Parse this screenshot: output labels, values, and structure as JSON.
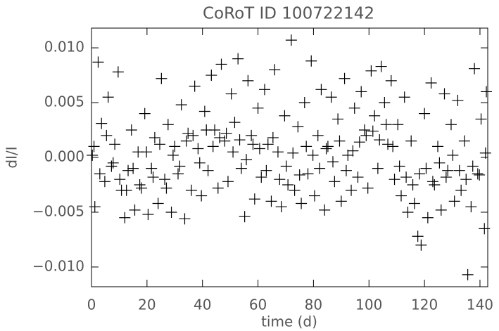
{
  "chart_data": {
    "type": "scatter",
    "title": "CoRoT ID 100722142",
    "x_label": "time (d)",
    "y_label": "dI/I",
    "color": "#000000",
    "marker": "plus",
    "xlim": [
      0,
      142.8
    ],
    "ylim": [
      -0.0118,
      0.0118
    ],
    "xticks": [
      0,
      20,
      40,
      60,
      80,
      100,
      120,
      140
    ],
    "yticks": [
      {
        "value": -0.01,
        "label": "−0.010"
      },
      {
        "value": -0.005,
        "label": "−0.005"
      },
      {
        "value": 0,
        "label": "0.000"
      },
      {
        "value": 0.005,
        "label": "0.005"
      },
      {
        "value": 0.01,
        "label": "0.010"
      }
    ],
    "x": [
      0.3,
      1.2,
      2.4,
      3.6,
      4.8,
      6.0,
      7.2,
      8.4,
      9.6,
      10.8,
      12.0,
      13.2,
      14.4,
      15.6,
      16.8,
      18.0,
      19.2,
      20.4,
      21.6,
      22.8,
      24.0,
      25.2,
      26.4,
      27.6,
      28.8,
      30.0,
      31.2,
      32.4,
      33.6,
      34.8,
      36.0,
      37.2,
      38.4,
      39.6,
      40.8,
      42.0,
      43.2,
      44.4,
      45.6,
      46.8,
      48.0,
      49.2,
      50.4,
      51.6,
      52.8,
      54.0,
      55.2,
      56.4,
      57.6,
      58.8,
      60.0,
      61.2,
      62.4,
      63.6,
      64.8,
      66.0,
      67.2,
      68.4,
      69.6,
      70.8,
      72.0,
      73.2,
      74.4,
      75.6,
      76.8,
      78.0,
      79.2,
      80.4,
      81.6,
      82.8,
      84.0,
      85.2,
      86.4,
      87.6,
      88.8,
      90.0,
      91.2,
      92.4,
      93.6,
      94.8,
      96.0,
      97.2,
      98.4,
      99.6,
      100.8,
      102.0,
      103.2,
      104.4,
      105.6,
      106.8,
      108.0,
      109.2,
      110.4,
      111.6,
      112.8,
      114.0,
      115.2,
      116.4,
      117.6,
      118.8,
      120.0,
      121.2,
      122.4,
      123.6,
      124.8,
      126.0,
      127.2,
      128.4,
      129.6,
      130.8,
      132.0,
      133.2,
      134.4,
      135.6,
      136.8,
      138.0,
      139.2,
      140.4,
      141.6,
      142.3,
      0.9,
      3.0,
      5.4,
      7.8,
      10.2,
      12.6,
      15.0,
      17.4,
      19.8,
      22.2,
      24.6,
      27.0,
      29.4,
      31.8,
      34.2,
      36.6,
      39.0,
      41.4,
      43.8,
      46.2,
      48.6,
      51.0,
      53.4,
      55.8,
      58.2,
      60.6,
      63.0,
      65.4,
      67.8,
      70.2,
      72.6,
      75.0,
      77.4,
      79.8,
      82.2,
      84.6,
      87.0,
      89.4,
      91.8,
      94.2,
      96.6,
      99.0,
      101.4,
      103.8,
      106.2,
      108.6,
      111.0,
      113.4,
      115.8,
      118.2,
      120.6,
      123.0,
      125.4,
      127.8,
      130.2,
      132.6,
      135.0,
      137.4,
      139.8,
      142.0
    ],
    "values": [
      0.0002,
      -0.0045,
      0.0087,
      0.0031,
      -0.0022,
      0.0055,
      -0.0008,
      0.0012,
      0.0078,
      -0.003,
      -0.0055,
      -0.0012,
      0.0025,
      -0.0048,
      0.0005,
      -0.0028,
      0.004,
      -0.0052,
      -0.001,
      0.0018,
      -0.0042,
      0.0072,
      -0.002,
      0.003,
      -0.005,
      0.001,
      -0.0015,
      0.0048,
      -0.0056,
      0.0022,
      -0.003,
      0.0065,
      0.0008,
      -0.0035,
      0.0042,
      -0.0012,
      0.0075,
      0.0025,
      -0.0028,
      0.0085,
      0.0015,
      -0.0022,
      0.0058,
      0.0032,
      0.009,
      -0.001,
      -0.0054,
      0.007,
      0.002,
      -0.0038,
      0.0045,
      -0.0018,
      0.0062,
      0.0012,
      -0.004,
      0.008,
      0.0005,
      -0.0045,
      0.0038,
      -0.0025,
      0.0107,
      -0.003,
      0.0028,
      -0.0042,
      0.005,
      -0.0015,
      0.0088,
      -0.0035,
      0.002,
      0.0062,
      -0.0048,
      0.001,
      0.0055,
      -0.0022,
      0.0035,
      -0.004,
      0.0072,
      0.0002,
      -0.003,
      0.0045,
      -0.0018,
      0.006,
      0.0025,
      -0.0028,
      0.0079,
      0.0038,
      -0.001,
      0.0083,
      0.005,
      0.0012,
      0.007,
      -0.002,
      0.003,
      -0.0035,
      0.0055,
      -0.005,
      0.0015,
      -0.0042,
      -0.0072,
      -0.008,
      0.004,
      -0.0055,
      0.0068,
      -0.0025,
      0.001,
      -0.0048,
      0.0058,
      -0.0012,
      0.003,
      -0.004,
      0.0052,
      -0.003,
      0.0015,
      -0.0107,
      -0.0045,
      0.0081,
      -0.0015,
      0.0035,
      -0.0065,
      0.006,
      0.001,
      -0.0015,
      0.002,
      -0.0005,
      -0.002,
      -0.003,
      -0.001,
      -0.0025,
      0.0005,
      -0.0018,
      0.0012,
      -0.0028,
      0.0002,
      -0.0008,
      0.0015,
      0.002,
      -0.0005,
      0.0025,
      0.001,
      0.0018,
      0.0022,
      0.0005,
      0.0016,
      -0.0002,
      0.0012,
      0.0008,
      -0.0012,
      0.0018,
      -0.002,
      -0.0008,
      0.0004,
      -0.0016,
      0.001,
      0.0002,
      -0.001,
      0.0008,
      -0.0004,
      0.0015,
      -0.0012,
      0.0006,
      0.0014,
      0.002,
      0.0024,
      0.0016,
      0.003,
      0.001,
      -0.0008,
      -0.0018,
      -0.0025,
      -0.0015,
      -0.001,
      -0.0022,
      -0.0005,
      -0.0018,
      0.0002,
      -0.0012,
      -0.002,
      -0.0008,
      -0.0016,
      0.0004
    ]
  }
}
